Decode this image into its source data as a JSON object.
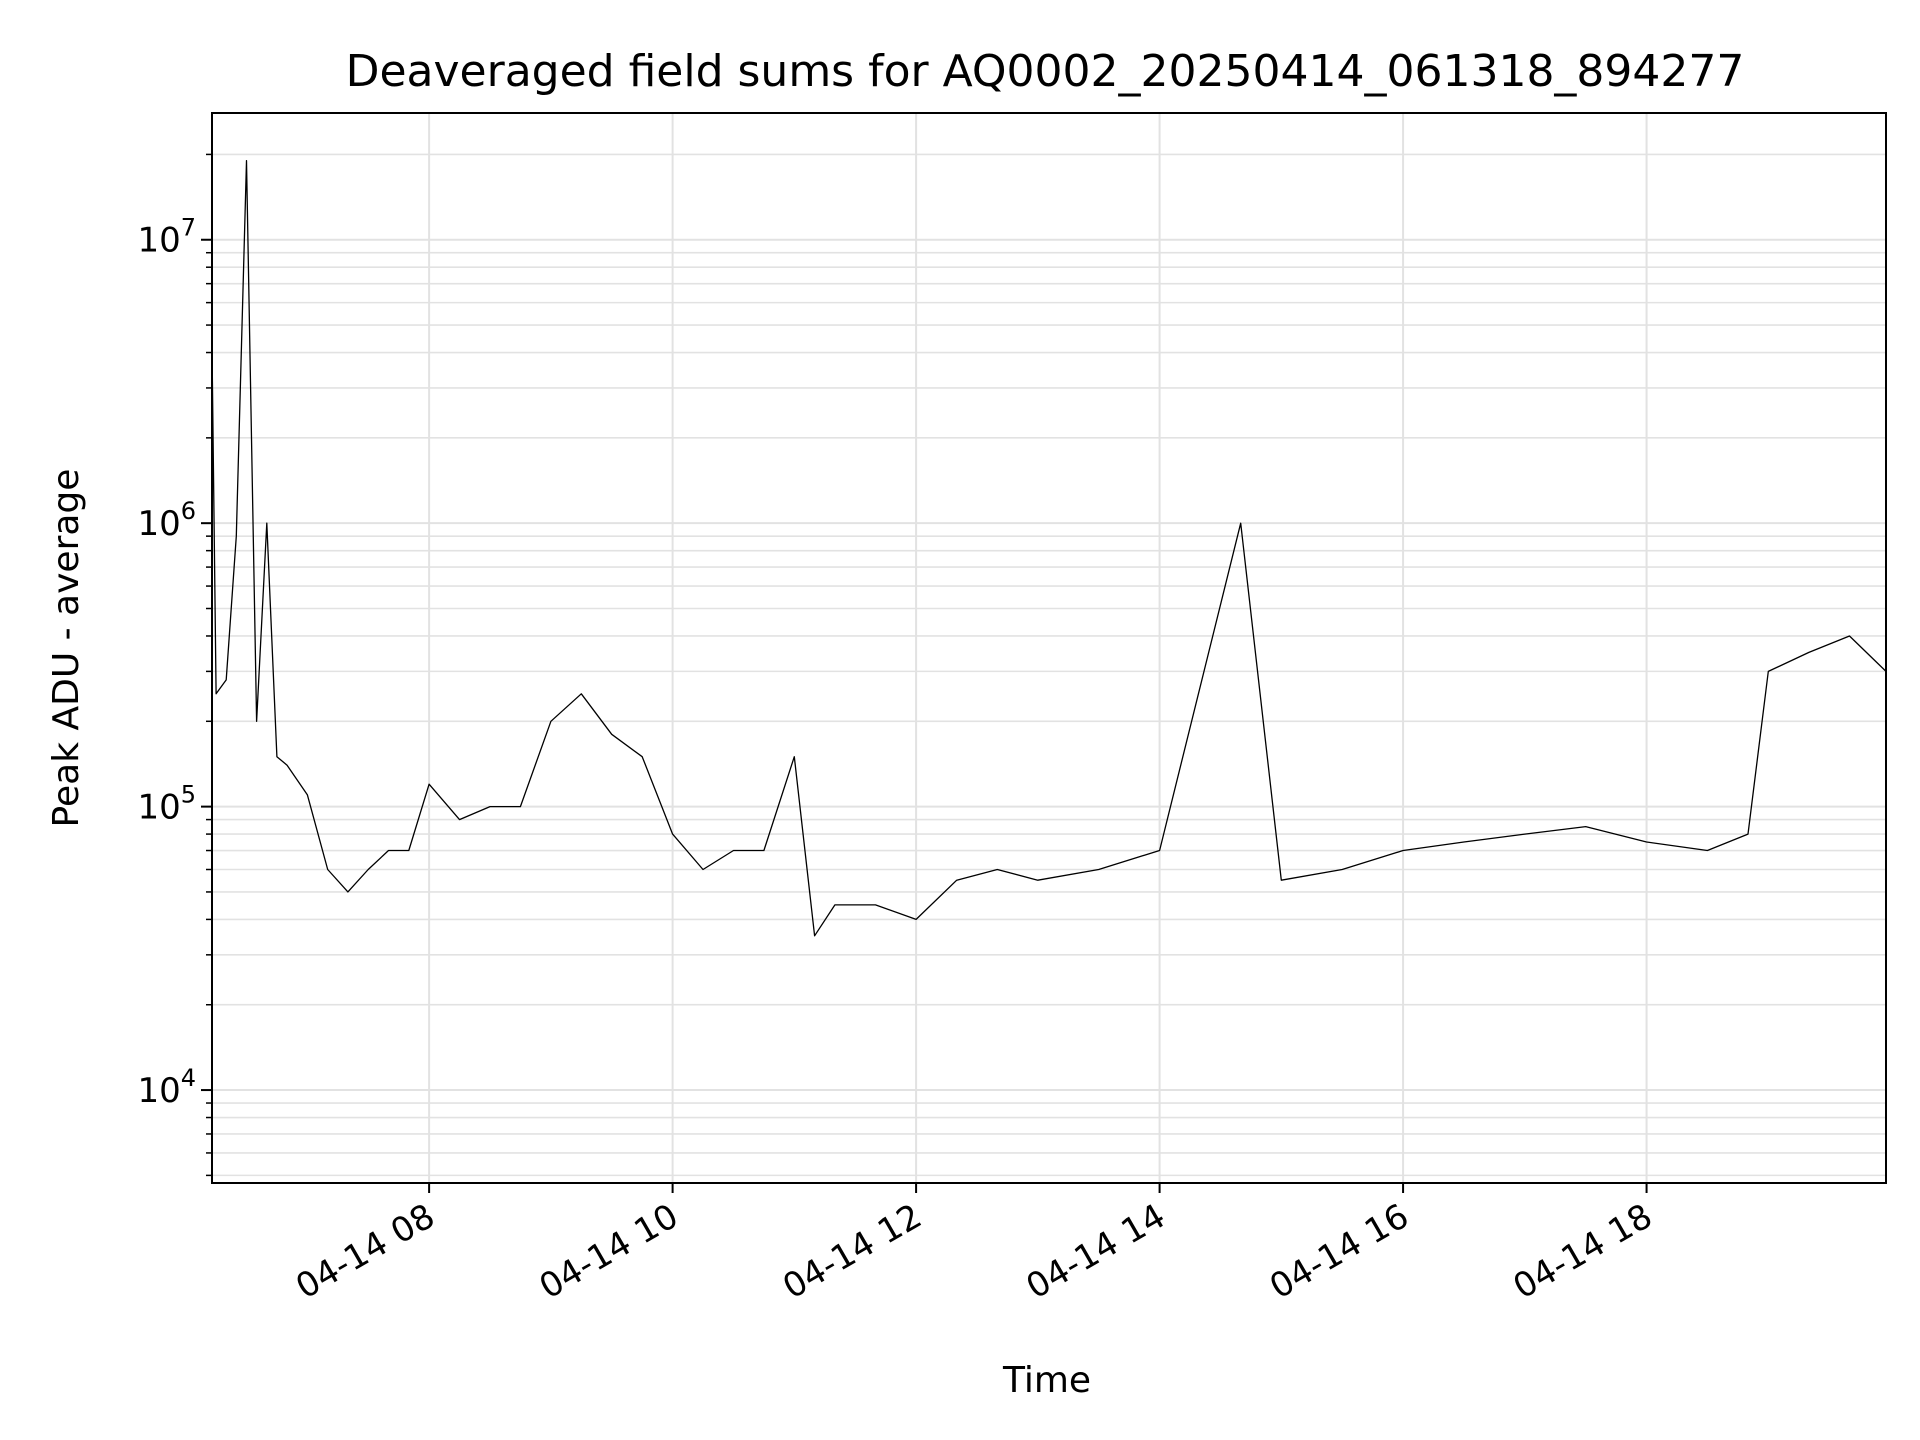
{
  "chart_data": {
    "type": "line",
    "title": "Deaveraged field sums for AQ0002_20250414_061318_894277",
    "xlabel": "Time",
    "ylabel": "Peak ADU - average",
    "yscale": "log",
    "ylim": [
      4700,
      28000000
    ],
    "xlim": [
      "2025-04-14 06:13",
      "2025-04-14 19:58"
    ],
    "grid": "major and minor, light gray",
    "line_color": "#000000",
    "x_ticks": [
      {
        "value": "2025-04-14 08:00",
        "label": "04-14 08"
      },
      {
        "value": "2025-04-14 10:00",
        "label": "04-14 10"
      },
      {
        "value": "2025-04-14 12:00",
        "label": "04-14 12"
      },
      {
        "value": "2025-04-14 14:00",
        "label": "04-14 14"
      },
      {
        "value": "2025-04-14 16:00",
        "label": "04-14 16"
      },
      {
        "value": "2025-04-14 18:00",
        "label": "04-14 18"
      }
    ],
    "y_ticks": [
      {
        "value": 10000,
        "base": "10",
        "exp": "4"
      },
      {
        "value": 100000,
        "base": "10",
        "exp": "5"
      },
      {
        "value": 1000000,
        "base": "10",
        "exp": "6"
      },
      {
        "value": 10000000,
        "base": "10",
        "exp": "7"
      }
    ],
    "series": [
      {
        "x": [
          "2025-04-14 06:13",
          "2025-04-14 06:15",
          "2025-04-14 06:20",
          "2025-04-14 06:25",
          "2025-04-14 06:30",
          "2025-04-14 06:35",
          "2025-04-14 06:40",
          "2025-04-14 06:45",
          "2025-04-14 06:50",
          "2025-04-14 07:00",
          "2025-04-14 07:10",
          "2025-04-14 07:20",
          "2025-04-14 07:30",
          "2025-04-14 07:40",
          "2025-04-14 07:50",
          "2025-04-14 08:00",
          "2025-04-14 08:15",
          "2025-04-14 08:30",
          "2025-04-14 08:45",
          "2025-04-14 09:00",
          "2025-04-14 09:15",
          "2025-04-14 09:30",
          "2025-04-14 09:45",
          "2025-04-14 10:00",
          "2025-04-14 10:15",
          "2025-04-14 10:30",
          "2025-04-14 10:45",
          "2025-04-14 11:00",
          "2025-04-14 11:10",
          "2025-04-14 11:20",
          "2025-04-14 11:40",
          "2025-04-14 12:00",
          "2025-04-14 12:20",
          "2025-04-14 12:40",
          "2025-04-14 13:00",
          "2025-04-14 13:30",
          "2025-04-14 14:00",
          "2025-04-14 14:40",
          "2025-04-14 15:00",
          "2025-04-14 15:30",
          "2025-04-14 16:00",
          "2025-04-14 16:30",
          "2025-04-14 17:00",
          "2025-04-14 17:30",
          "2025-04-14 18:00",
          "2025-04-14 18:30",
          "2025-04-14 18:50",
          "2025-04-14 19:00",
          "2025-04-14 19:20",
          "2025-04-14 19:40",
          "2025-04-14 19:58"
        ],
        "y": [
          4200000,
          250000,
          280000,
          900000,
          19000000,
          200000,
          1000000,
          150000,
          140000,
          110000,
          60000,
          50000,
          60000,
          70000,
          70000,
          120000,
          90000,
          100000,
          100000,
          200000,
          250000,
          180000,
          150000,
          80000,
          60000,
          70000,
          70000,
          150000,
          35000,
          45000,
          45000,
          40000,
          55000,
          60000,
          55000,
          60000,
          70000,
          1000000,
          55000,
          60000,
          70000,
          75000,
          80000,
          85000,
          75000,
          70000,
          80000,
          300000,
          350000,
          400000,
          300000
        ]
      }
    ]
  }
}
